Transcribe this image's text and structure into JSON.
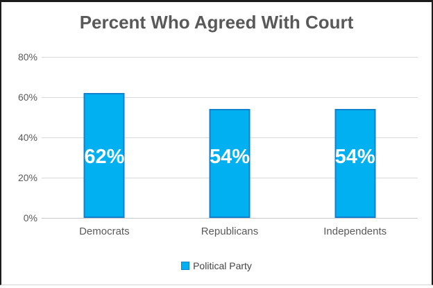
{
  "chart_data": {
    "type": "bar",
    "title": "Percent Who Agreed With Court",
    "categories": [
      "Democrats",
      "Republicans",
      "Independents"
    ],
    "values": [
      62,
      54,
      54
    ],
    "data_labels": [
      "62%",
      "54%",
      "54%"
    ],
    "xlabel": "",
    "ylabel": "",
    "ylim": [
      0,
      80
    ],
    "y_ticks": [
      {
        "label": "80%",
        "value": 80
      },
      {
        "label": "60%",
        "value": 60
      },
      {
        "label": "40%",
        "value": 40
      },
      {
        "label": "20%",
        "value": 20
      },
      {
        "label": "0%",
        "value": 0
      }
    ],
    "grid": true,
    "legend": {
      "label": "Political Party",
      "position": "bottom"
    },
    "colors": {
      "bar_fill": "#00b0f0",
      "bar_border": "#1181ce",
      "gridline": "#d9d9d9",
      "axis_line": "#c9c9c9",
      "title_text": "#595959",
      "axis_text": "#595959",
      "data_label_text": "#ffffff",
      "frame_border": "#1c1c1c"
    }
  }
}
